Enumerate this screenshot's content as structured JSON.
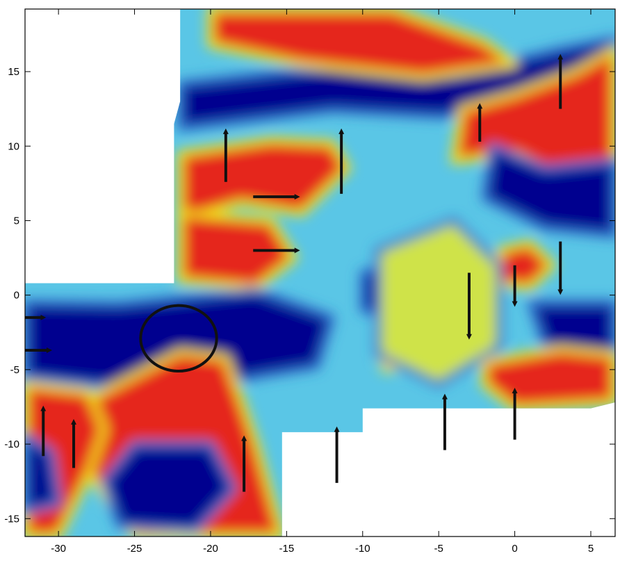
{
  "chart_data": {
    "type": "heatmap",
    "title": "",
    "xlabel": "",
    "ylabel": "",
    "xlim": [
      -32.2,
      6.6
    ],
    "ylim": [
      -16.2,
      19.2
    ],
    "x_ticks": [
      -30,
      -25,
      -20,
      -15,
      -10,
      -5,
      0,
      5
    ],
    "y_ticks": [
      -15,
      -10,
      -5,
      0,
      5,
      10,
      15
    ],
    "colormap": [
      "#00008f",
      "#0a3fa8",
      "#2f6fcc",
      "#5ac6e6",
      "#cfe34a",
      "#f3e21e",
      "#f6a02a",
      "#e5261d",
      "#8a0d0d"
    ],
    "coverage_region": [
      [
        -32.2,
        -16.2
      ],
      [
        -15.3,
        -16.2
      ],
      [
        -15.3,
        -9.2
      ],
      [
        -10.0,
        -9.2
      ],
      [
        -10.0,
        -7.6
      ],
      [
        5.0,
        -7.6
      ],
      [
        6.6,
        -7.2
      ],
      [
        6.6,
        19.2
      ],
      [
        -22.0,
        19.2
      ],
      [
        -22.0,
        13.0
      ],
      [
        -22.4,
        11.5
      ],
      [
        -22.4,
        0.8
      ],
      [
        -32.2,
        0.8
      ]
    ],
    "regions": [
      {
        "level": "low",
        "polygon": [
          [
            -22,
            14.2
          ],
          [
            -12,
            15.3
          ],
          [
            -4,
            14.8
          ],
          [
            3,
            16.5
          ],
          [
            6.6,
            17.2
          ],
          [
            6.6,
            15
          ],
          [
            2,
            12.6
          ],
          [
            -5,
            12
          ],
          [
            -12,
            12.4
          ],
          [
            -22,
            11.2
          ]
        ]
      },
      {
        "level": "high",
        "polygon": [
          [
            -20,
            19.2
          ],
          [
            -8,
            19.2
          ],
          [
            -2,
            17
          ],
          [
            0,
            15.5
          ],
          [
            -6,
            14.6
          ],
          [
            -14,
            15.5
          ],
          [
            -20,
            16.8
          ]
        ]
      },
      {
        "level": "high",
        "polygon": [
          [
            -3.5,
            12.5
          ],
          [
            0,
            13.5
          ],
          [
            4,
            15
          ],
          [
            6.6,
            16.5
          ],
          [
            6.6,
            8.5
          ],
          [
            3,
            8
          ],
          [
            0,
            9.5
          ],
          [
            -4,
            9
          ]
        ]
      },
      {
        "level": "high",
        "polygon": [
          [
            -22,
            9.5
          ],
          [
            -16,
            10.4
          ],
          [
            -12,
            10.2
          ],
          [
            -11,
            8.5
          ],
          [
            -14,
            5.5
          ],
          [
            -18,
            6.2
          ],
          [
            -22,
            5
          ]
        ]
      },
      {
        "level": "high",
        "polygon": [
          [
            -22,
            5.5
          ],
          [
            -16,
            5
          ],
          [
            -14.5,
            2.5
          ],
          [
            -17,
            0.5
          ],
          [
            -22,
            1
          ]
        ]
      },
      {
        "level": "high",
        "polygon": [
          [
            -1,
            3
          ],
          [
            1,
            3.5
          ],
          [
            2.5,
            2
          ],
          [
            1,
            0.5
          ],
          [
            -1,
            0.8
          ]
        ]
      },
      {
        "level": "low",
        "polygon": [
          [
            -32.2,
            -0.5
          ],
          [
            -26,
            -0.6
          ],
          [
            -17,
            0.3
          ],
          [
            -12,
            -1.5
          ],
          [
            -13,
            -4.8
          ],
          [
            -19,
            -5.8
          ],
          [
            -26,
            -6.2
          ],
          [
            -32.2,
            -5.5
          ]
        ]
      },
      {
        "level": "low",
        "polygon": [
          [
            -10,
            1.5
          ],
          [
            -6,
            2.5
          ],
          [
            -4,
            0
          ],
          [
            -6,
            -2
          ],
          [
            -10,
            -1
          ]
        ]
      },
      {
        "level": "low",
        "polygon": [
          [
            -1.5,
            10
          ],
          [
            2,
            8.5
          ],
          [
            6.6,
            9
          ],
          [
            6.6,
            4
          ],
          [
            2,
            4.5
          ],
          [
            -2,
            6.5
          ]
        ]
      },
      {
        "level": "low",
        "polygon": [
          [
            1,
            -0.5
          ],
          [
            6.6,
            -0.5
          ],
          [
            6.6,
            -4
          ],
          [
            2,
            -3.5
          ]
        ]
      },
      {
        "level": "high",
        "polygon": [
          [
            -22,
            -3.8
          ],
          [
            -19,
            -4.2
          ],
          [
            -18,
            -7
          ],
          [
            -17,
            -10
          ],
          [
            -15.3,
            -16.2
          ],
          [
            -25,
            -16.2
          ],
          [
            -28,
            -12
          ],
          [
            -28,
            -7
          ]
        ]
      },
      {
        "level": "high",
        "polygon": [
          [
            -32.2,
            -6
          ],
          [
            -28,
            -6.5
          ],
          [
            -27,
            -9
          ],
          [
            -28,
            -12
          ],
          [
            -30,
            -16.2
          ],
          [
            -32.2,
            -16.2
          ]
        ]
      },
      {
        "level": "low",
        "polygon": [
          [
            -32.2,
            -9.5
          ],
          [
            -30.5,
            -10.5
          ],
          [
            -30,
            -14
          ],
          [
            -32.2,
            -14.5
          ]
        ]
      },
      {
        "level": "low",
        "polygon": [
          [
            -25,
            -10
          ],
          [
            -20,
            -10
          ],
          [
            -18.5,
            -13
          ],
          [
            -21,
            -15.8
          ],
          [
            -26,
            -15.5
          ],
          [
            -27,
            -12.5
          ]
        ]
      },
      {
        "level": "high",
        "polygon": [
          [
            -2,
            -4.5
          ],
          [
            3,
            -3.6
          ],
          [
            6.6,
            -4
          ],
          [
            6.6,
            -7.2
          ],
          [
            0,
            -7.6
          ],
          [
            -2,
            -6
          ]
        ]
      },
      {
        "level": "high",
        "polygon": [
          [
            -9,
            -3.5
          ],
          [
            -7,
            -3
          ],
          [
            -6.5,
            -4.5
          ],
          [
            -8.5,
            -5
          ]
        ]
      },
      {
        "level": "mid",
        "polygon": [
          [
            -9,
            3
          ],
          [
            -4,
            5
          ],
          [
            -1,
            2
          ],
          [
            -1,
            -3.5
          ],
          [
            -5,
            -6
          ],
          [
            -9,
            -4
          ]
        ]
      }
    ],
    "annotations": {
      "arrows": [
        {
          "direction": "up",
          "x": -19,
          "y_start": 7.6,
          "y_end": 11.0
        },
        {
          "direction": "up",
          "x": -11.4,
          "y_start": 6.8,
          "y_end": 11.0
        },
        {
          "direction": "up",
          "x": -2.3,
          "y_start": 10.3,
          "y_end": 12.7
        },
        {
          "direction": "up",
          "x": 3,
          "y_start": 12.5,
          "y_end": 16.0
        },
        {
          "direction": "right",
          "y": 6.6,
          "x_start": -17.2,
          "x_end": -14.3
        },
        {
          "direction": "right",
          "y": 3.0,
          "x_start": -17.2,
          "x_end": -14.3
        },
        {
          "direction": "down",
          "x": -3,
          "y_start": 1.5,
          "y_end": -2.8
        },
        {
          "direction": "down",
          "x": 0,
          "y_start": 2.0,
          "y_end": -0.6
        },
        {
          "direction": "down",
          "x": 3,
          "y_start": 3.6,
          "y_end": 0.2
        },
        {
          "direction": "right",
          "y": -1.5,
          "x_start": -32.9,
          "x_end": -31.0
        },
        {
          "direction": "right",
          "y": -3.7,
          "x_start": -32.6,
          "x_end": -30.6
        },
        {
          "direction": "up",
          "x": -31,
          "y_start": -10.8,
          "y_end": -7.6
        },
        {
          "direction": "up",
          "x": -29,
          "y_start": -11.6,
          "y_end": -8.5
        },
        {
          "direction": "up",
          "x": -17.8,
          "y_start": -13.2,
          "y_end": -9.6
        },
        {
          "direction": "up",
          "x": -11.7,
          "y_start": -12.6,
          "y_end": -9.0
        },
        {
          "direction": "up",
          "x": -4.6,
          "y_start": -10.4,
          "y_end": -6.8
        },
        {
          "direction": "up",
          "x": 0,
          "y_start": -9.7,
          "y_end": -6.4
        }
      ],
      "circle": {
        "cx": -22.1,
        "cy": -2.9,
        "rx": 2.5,
        "ry": 2.2
      }
    }
  }
}
